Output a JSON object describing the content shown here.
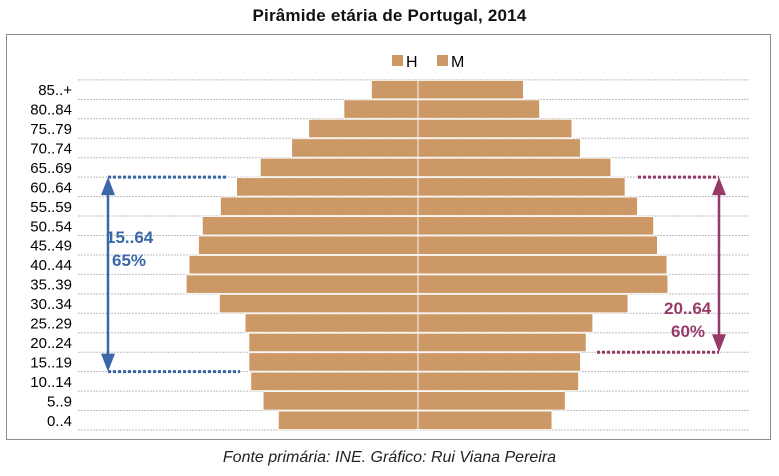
{
  "title": "Pirâmide etária de Portugal, 2014",
  "source": "Fonte primária: INE. Gráfico: Rui Viana Pereira",
  "colors": {
    "bar": "#cc9966",
    "bar_edge": "#ffffff",
    "grid": "#bfbfbf",
    "blue": "#3a67a8",
    "purple": "#963a6a"
  },
  "chart_data": {
    "type": "bar",
    "orientation": "horizontal-population-pyramid",
    "categories": [
      "0..4",
      "5..9",
      "10..14",
      "15..19",
      "20..24",
      "25..29",
      "30..34",
      "35..39",
      "40..44",
      "45..49",
      "50..54",
      "55..59",
      "60..64",
      "65..69",
      "70..74",
      "75..79",
      "80..84",
      "85..+"
    ],
    "series": [
      {
        "name": "H",
        "side": "left",
        "values": [
          147,
          163,
          176,
          178,
          178,
          182,
          209,
          244,
          241,
          231,
          227,
          208,
          191,
          166,
          133,
          115,
          78,
          49
        ]
      },
      {
        "name": "M",
        "side": "right",
        "values": [
          141,
          155,
          169,
          171,
          177,
          184,
          221,
          263,
          262,
          252,
          248,
          231,
          218,
          203,
          171,
          162,
          128,
          111
        ]
      }
    ],
    "legend": {
      "position": "top-center",
      "items": [
        "H",
        "M"
      ]
    },
    "grid": true,
    "annotations": [
      {
        "label": "15..64",
        "value": "65%",
        "side": "left",
        "from": "15..19",
        "to": "60..64",
        "color": "blue"
      },
      {
        "label": "20..64",
        "value": "60%",
        "side": "right",
        "from": "20..24",
        "to": "60..64",
        "color": "purple"
      }
    ]
  }
}
